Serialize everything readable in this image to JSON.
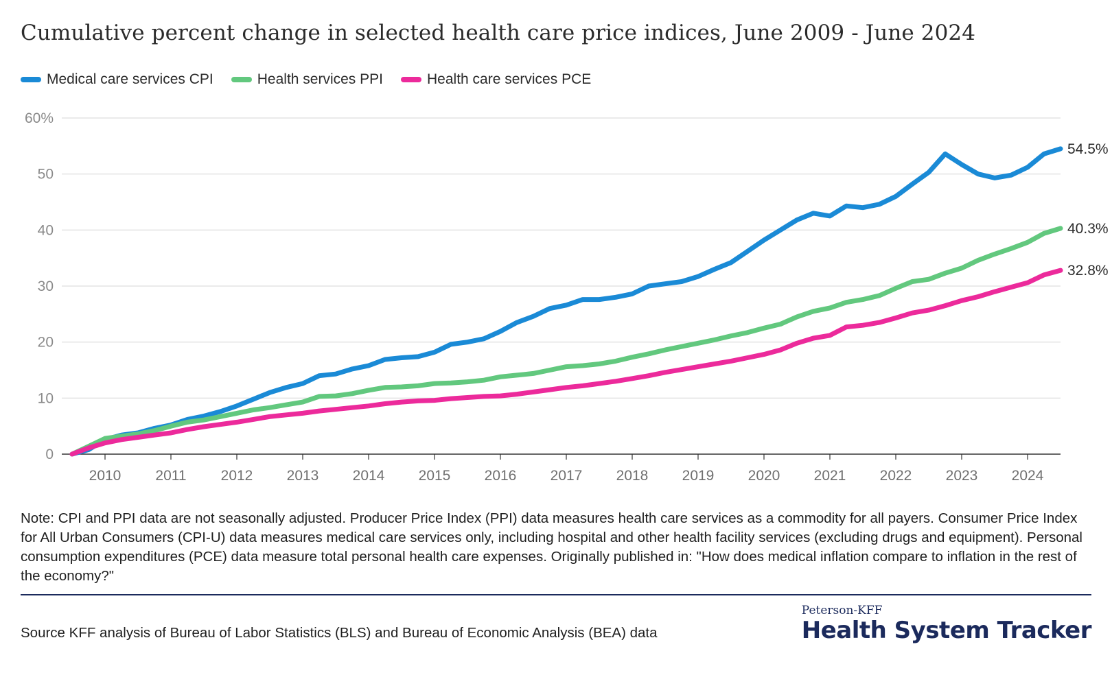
{
  "title": "Cumulative percent change in selected health care price indices, June 2009 - June 2024",
  "legend": [
    {
      "label": "Medical care services CPI",
      "color": "#1a8ad6"
    },
    {
      "label": "Health services PPI",
      "color": "#62c87e"
    },
    {
      "label": "Health care services PCE",
      "color": "#ec2a9b"
    }
  ],
  "note": "Note: CPI and PPI data are not seasonally adjusted. Producer Price Index (PPI) data measures health care services as a commodity for all payers. Consumer Price Index for All Urban Consumers (CPI-U) data measures medical care services only, including hospital and other health facility services (excluding drugs and equipment). Personal consumption expenditures (PCE) data measure total personal health care expenses. Originally published in: \"How does medical inflation compare to inflation in the rest of the economy?\"",
  "source": "Source KFF analysis of Bureau of Labor Statistics (BLS) and Bureau of Economic Analysis (BEA) data",
  "brand": {
    "top": "Peterson-KFF",
    "main": "Health System Tracker"
  },
  "chart_data": {
    "type": "line",
    "title": "Cumulative percent change in selected health care price indices, June 2009 - June 2024",
    "xlim": [
      2009.5,
      2024.5
    ],
    "ylim": [
      0,
      60
    ],
    "y_ticks": [
      0,
      10,
      20,
      30,
      40,
      50,
      60
    ],
    "y_tick_labels": [
      "0",
      "10",
      "20",
      "30",
      "40",
      "50",
      "60%"
    ],
    "x_ticks": [
      2010,
      2011,
      2012,
      2013,
      2014,
      2015,
      2016,
      2017,
      2018,
      2019,
      2020,
      2021,
      2022,
      2023,
      2024
    ],
    "grid": true,
    "legend_position": "top-left",
    "series": [
      {
        "name": "Medical care services CPI",
        "color": "#1a8ad6",
        "end_label": "54.5%",
        "points": [
          [
            2009.5,
            0
          ],
          [
            2009.75,
            0.8
          ],
          [
            2010.0,
            2.6
          ],
          [
            2010.25,
            3.4
          ],
          [
            2010.5,
            3.8
          ],
          [
            2010.75,
            4.6
          ],
          [
            2011.0,
            5.2
          ],
          [
            2011.25,
            6.2
          ],
          [
            2011.5,
            6.8
          ],
          [
            2011.75,
            7.6
          ],
          [
            2012.0,
            8.6
          ],
          [
            2012.25,
            9.8
          ],
          [
            2012.5,
            11.0
          ],
          [
            2012.75,
            11.9
          ],
          [
            2013.0,
            12.6
          ],
          [
            2013.25,
            14.0
          ],
          [
            2013.5,
            14.3
          ],
          [
            2013.75,
            15.2
          ],
          [
            2014.0,
            15.8
          ],
          [
            2014.25,
            16.9
          ],
          [
            2014.5,
            17.2
          ],
          [
            2014.75,
            17.4
          ],
          [
            2015.0,
            18.2
          ],
          [
            2015.25,
            19.6
          ],
          [
            2015.5,
            20.0
          ],
          [
            2015.75,
            20.6
          ],
          [
            2016.0,
            21.9
          ],
          [
            2016.25,
            23.5
          ],
          [
            2016.5,
            24.6
          ],
          [
            2016.75,
            26.0
          ],
          [
            2017.0,
            26.6
          ],
          [
            2017.25,
            27.6
          ],
          [
            2017.5,
            27.6
          ],
          [
            2017.75,
            28.0
          ],
          [
            2018.0,
            28.6
          ],
          [
            2018.25,
            30.0
          ],
          [
            2018.5,
            30.4
          ],
          [
            2018.75,
            30.8
          ],
          [
            2019.0,
            31.7
          ],
          [
            2019.25,
            33.0
          ],
          [
            2019.5,
            34.2
          ],
          [
            2019.75,
            36.2
          ],
          [
            2020.0,
            38.2
          ],
          [
            2020.25,
            40.0
          ],
          [
            2020.5,
            41.8
          ],
          [
            2020.75,
            43.0
          ],
          [
            2021.0,
            42.5
          ],
          [
            2021.25,
            44.3
          ],
          [
            2021.5,
            44.0
          ],
          [
            2021.75,
            44.6
          ],
          [
            2022.0,
            46.0
          ],
          [
            2022.25,
            48.2
          ],
          [
            2022.5,
            50.3
          ],
          [
            2022.75,
            53.6
          ],
          [
            2023.0,
            51.7
          ],
          [
            2023.25,
            50.0
          ],
          [
            2023.5,
            49.3
          ],
          [
            2023.75,
            49.8
          ],
          [
            2024.0,
            51.2
          ],
          [
            2024.25,
            53.6
          ],
          [
            2024.5,
            54.5
          ]
        ]
      },
      {
        "name": "Health services PPI",
        "color": "#62c87e",
        "end_label": "40.3%",
        "points": [
          [
            2009.5,
            0
          ],
          [
            2009.75,
            1.4
          ],
          [
            2010.0,
            2.8
          ],
          [
            2010.25,
            3.2
          ],
          [
            2010.5,
            3.6
          ],
          [
            2010.75,
            4.2
          ],
          [
            2011.0,
            5.0
          ],
          [
            2011.25,
            5.7
          ],
          [
            2011.5,
            6.1
          ],
          [
            2011.75,
            6.7
          ],
          [
            2012.0,
            7.3
          ],
          [
            2012.25,
            7.9
          ],
          [
            2012.5,
            8.3
          ],
          [
            2012.75,
            8.8
          ],
          [
            2013.0,
            9.3
          ],
          [
            2013.25,
            10.3
          ],
          [
            2013.5,
            10.4
          ],
          [
            2013.75,
            10.8
          ],
          [
            2014.0,
            11.4
          ],
          [
            2014.25,
            11.9
          ],
          [
            2014.5,
            12.0
          ],
          [
            2014.75,
            12.2
          ],
          [
            2015.0,
            12.6
          ],
          [
            2015.25,
            12.7
          ],
          [
            2015.5,
            12.9
          ],
          [
            2015.75,
            13.2
          ],
          [
            2016.0,
            13.8
          ],
          [
            2016.25,
            14.1
          ],
          [
            2016.5,
            14.4
          ],
          [
            2016.75,
            15.0
          ],
          [
            2017.0,
            15.6
          ],
          [
            2017.25,
            15.8
          ],
          [
            2017.5,
            16.1
          ],
          [
            2017.75,
            16.6
          ],
          [
            2018.0,
            17.3
          ],
          [
            2018.25,
            17.9
          ],
          [
            2018.5,
            18.6
          ],
          [
            2018.75,
            19.2
          ],
          [
            2019.0,
            19.8
          ],
          [
            2019.25,
            20.4
          ],
          [
            2019.5,
            21.1
          ],
          [
            2019.75,
            21.7
          ],
          [
            2020.0,
            22.5
          ],
          [
            2020.25,
            23.2
          ],
          [
            2020.5,
            24.5
          ],
          [
            2020.75,
            25.5
          ],
          [
            2021.0,
            26.1
          ],
          [
            2021.25,
            27.1
          ],
          [
            2021.5,
            27.6
          ],
          [
            2021.75,
            28.3
          ],
          [
            2022.0,
            29.6
          ],
          [
            2022.25,
            30.8
          ],
          [
            2022.5,
            31.2
          ],
          [
            2022.75,
            32.3
          ],
          [
            2023.0,
            33.2
          ],
          [
            2023.25,
            34.6
          ],
          [
            2023.5,
            35.7
          ],
          [
            2023.75,
            36.7
          ],
          [
            2024.0,
            37.8
          ],
          [
            2024.25,
            39.4
          ],
          [
            2024.5,
            40.3
          ]
        ]
      },
      {
        "name": "Health care services PCE",
        "color": "#ec2a9b",
        "end_label": "32.8%",
        "points": [
          [
            2009.5,
            0
          ],
          [
            2009.75,
            1.1
          ],
          [
            2010.0,
            2.0
          ],
          [
            2010.25,
            2.6
          ],
          [
            2010.5,
            3.0
          ],
          [
            2010.75,
            3.4
          ],
          [
            2011.0,
            3.8
          ],
          [
            2011.25,
            4.4
          ],
          [
            2011.5,
            4.9
          ],
          [
            2011.75,
            5.3
          ],
          [
            2012.0,
            5.7
          ],
          [
            2012.25,
            6.2
          ],
          [
            2012.5,
            6.7
          ],
          [
            2012.75,
            7.0
          ],
          [
            2013.0,
            7.3
          ],
          [
            2013.25,
            7.7
          ],
          [
            2013.5,
            8.0
          ],
          [
            2013.75,
            8.3
          ],
          [
            2014.0,
            8.6
          ],
          [
            2014.25,
            9.0
          ],
          [
            2014.5,
            9.3
          ],
          [
            2014.75,
            9.5
          ],
          [
            2015.0,
            9.6
          ],
          [
            2015.25,
            9.9
          ],
          [
            2015.5,
            10.1
          ],
          [
            2015.75,
            10.3
          ],
          [
            2016.0,
            10.4
          ],
          [
            2016.25,
            10.7
          ],
          [
            2016.5,
            11.1
          ],
          [
            2016.75,
            11.5
          ],
          [
            2017.0,
            11.9
          ],
          [
            2017.25,
            12.2
          ],
          [
            2017.5,
            12.6
          ],
          [
            2017.75,
            13.0
          ],
          [
            2018.0,
            13.5
          ],
          [
            2018.25,
            14.0
          ],
          [
            2018.5,
            14.6
          ],
          [
            2018.75,
            15.1
          ],
          [
            2019.0,
            15.6
          ],
          [
            2019.25,
            16.1
          ],
          [
            2019.5,
            16.6
          ],
          [
            2019.75,
            17.2
          ],
          [
            2020.0,
            17.8
          ],
          [
            2020.25,
            18.6
          ],
          [
            2020.5,
            19.8
          ],
          [
            2020.75,
            20.7
          ],
          [
            2021.0,
            21.2
          ],
          [
            2021.25,
            22.7
          ],
          [
            2021.5,
            23.0
          ],
          [
            2021.75,
            23.5
          ],
          [
            2022.0,
            24.3
          ],
          [
            2022.25,
            25.2
          ],
          [
            2022.5,
            25.7
          ],
          [
            2022.75,
            26.5
          ],
          [
            2023.0,
            27.4
          ],
          [
            2023.25,
            28.1
          ],
          [
            2023.5,
            29.0
          ],
          [
            2023.75,
            29.8
          ],
          [
            2024.0,
            30.6
          ],
          [
            2024.25,
            32.0
          ],
          [
            2024.5,
            32.8
          ]
        ]
      }
    ]
  }
}
